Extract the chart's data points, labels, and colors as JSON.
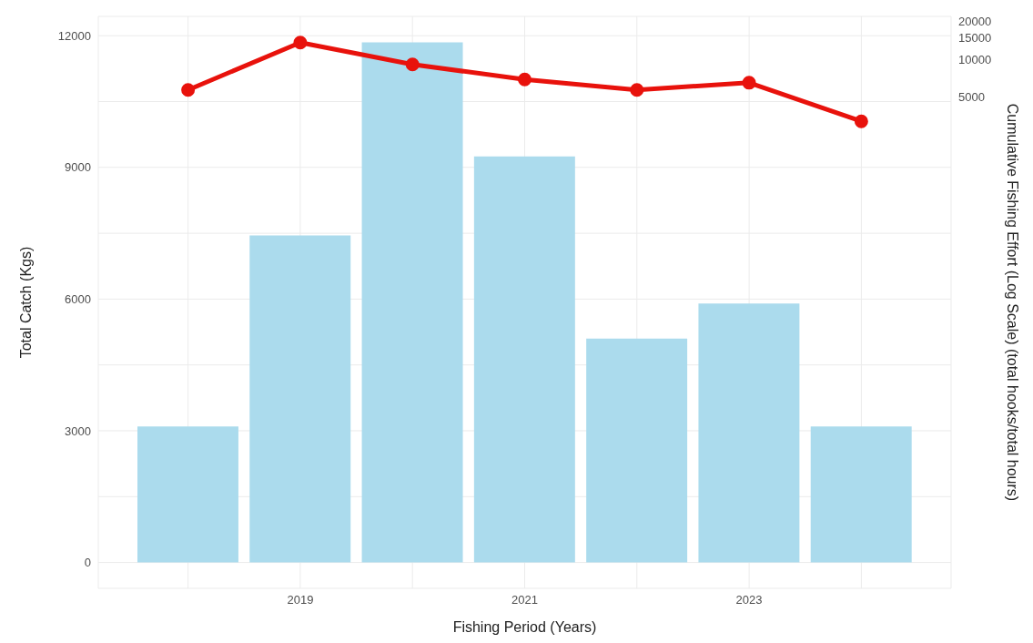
{
  "chart_data": {
    "type": "bar",
    "xlabel": "Fishing Period (Years)",
    "ylabel": "Total Catch (Kgs)",
    "y2label": "Cumulative Fishing Effort (Log Scale) (total hooks/total hours)",
    "x": [
      2018,
      2019,
      2020,
      2021,
      2022,
      2023,
      2024
    ],
    "series": [
      {
        "color": "#abdbed",
        "values": [
          3100,
          7450,
          11850,
          9250,
          5100,
          5900,
          3100
        ]
      },
      {
        "type": "line",
        "axis": "y2",
        "color": "#e8120c",
        "values": [
          5700,
          13600,
          9100,
          6900,
          5700,
          6500,
          3200
        ]
      }
    ],
    "xlim": [
      2017.2,
      2024.8
    ],
    "xticks": [
      {
        "value": 2018,
        "label": null
      },
      2019,
      {
        "value": 2020,
        "label": null
      },
      2021,
      {
        "value": 2022,
        "label": null
      },
      2023,
      {
        "value": 2024,
        "label": null
      }
    ],
    "ylim": [
      -590,
      12440
    ],
    "yticks": [
      0,
      {
        "value": 1500,
        "label": null
      },
      3000,
      {
        "value": 4500,
        "label": null
      },
      6000,
      {
        "value": 7500,
        "label": null
      },
      9000,
      {
        "value": 10500,
        "label": null
      },
      12000
    ],
    "y2lim": [
      0.6,
      22000
    ],
    "y2ticks": [
      5000,
      10000,
      15000,
      20000
    ],
    "log": "y2",
    "grid": true,
    "marker": "circle",
    "line_style": "solid"
  }
}
